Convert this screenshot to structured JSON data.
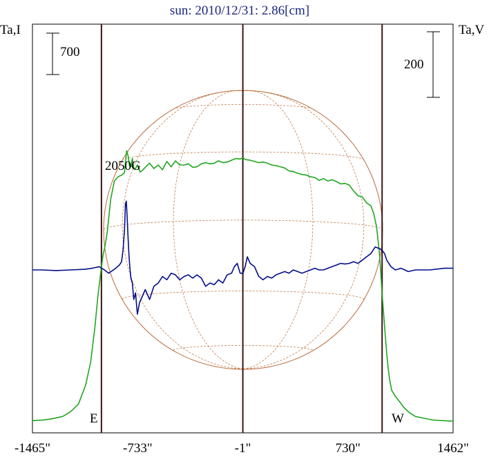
{
  "chart_data": {
    "type": "line",
    "title": "sun: 2010/12/31: 2.86[cm]",
    "left_axis_label": "Ta,I",
    "right_axis_label": "Ta,V",
    "xlim": [
      -1465,
      1462
    ],
    "x_ticks": [
      -1465,
      -733,
      -1,
      730,
      1462
    ],
    "x_tick_labels": [
      "-1465\"",
      "-733\"",
      "-1\"",
      "730\"",
      "1462\""
    ],
    "vertical_markers": [
      {
        "label": "E",
        "x": -985
      },
      {
        "label": "",
        "x": -1
      },
      {
        "label": "W",
        "x": 968
      }
    ],
    "scale_bars": [
      {
        "label": "700",
        "axis": "I",
        "value": 700
      },
      {
        "label": "200",
        "axis": "V",
        "value": 200
      }
    ],
    "annotations": [
      {
        "text": "2050G",
        "x": -806
      }
    ],
    "series": [
      {
        "axis": "I",
        "color": "#1fa61f",
        "x": [
          -1465,
          -1390,
          -1330,
          -1255,
          -1200,
          -1145,
          -1095,
          -1060,
          -1030,
          -1010,
          -995,
          -985,
          -975,
          -960,
          -945,
          -920,
          -895,
          -870,
          -845,
          -825,
          -810,
          -800,
          -790,
          -780,
          -770,
          -760,
          -750,
          -735,
          -715,
          -700,
          -680,
          -650,
          -620,
          -590,
          -560,
          -530,
          -500,
          -470,
          -440,
          -410,
          -380,
          -350,
          -320,
          -290,
          -260,
          -230,
          -200,
          -170,
          -140,
          -110,
          -80,
          -50,
          -20,
          0,
          20,
          50,
          80,
          110,
          140,
          170,
          200,
          230,
          260,
          290,
          320,
          350,
          380,
          410,
          440,
          470,
          500,
          530,
          560,
          590,
          620,
          650,
          680,
          710,
          740,
          770,
          800,
          830,
          860,
          890,
          910,
          930,
          950,
          960,
          970,
          980,
          990,
          1000,
          1010,
          1020,
          1035,
          1060,
          1090,
          1120,
          1160,
          1200,
          1260,
          1320,
          1390,
          1462
        ],
        "y": [
          20,
          30,
          50,
          90,
          170,
          300,
          620,
          1010,
          1610,
          2120,
          2420,
          2620,
          2800,
          2980,
          3200,
          3770,
          4070,
          4140,
          4170,
          4210,
          4580,
          4500,
          4330,
          4310,
          4450,
          4290,
          4270,
          4340,
          4220,
          4250,
          4300,
          4370,
          4280,
          4340,
          4260,
          4400,
          4310,
          4410,
          4340,
          4340,
          4360,
          4300,
          4310,
          4360,
          4380,
          4360,
          4370,
          4410,
          4380,
          4390,
          4420,
          4450,
          4440,
          4460,
          4430,
          4420,
          4400,
          4380,
          4390,
          4370,
          4340,
          4330,
          4310,
          4290,
          4240,
          4230,
          4200,
          4180,
          4170,
          4140,
          4130,
          4080,
          4110,
          4070,
          4090,
          4060,
          4020,
          4030,
          4000,
          3900,
          3820,
          3800,
          3700,
          3650,
          3520,
          3290,
          2830,
          2470,
          2110,
          1790,
          1460,
          1160,
          910,
          720,
          530,
          430,
          340,
          240,
          150,
          90,
          60,
          30,
          20,
          10
        ]
      },
      {
        "axis": "V",
        "color": "#000d8a",
        "x": [
          -1465,
          -1400,
          -1300,
          -1200,
          -1100,
          -1050,
          -1000,
          -985,
          -970,
          -950,
          -935,
          -915,
          -895,
          -878,
          -860,
          -845,
          -835,
          -825,
          -818,
          -812,
          -806,
          -800,
          -794,
          -788,
          -780,
          -770,
          -760,
          -748,
          -735,
          -720,
          -700,
          -680,
          -650,
          -620,
          -590,
          -560,
          -530,
          -500,
          -470,
          -440,
          -410,
          -380,
          -350,
          -320,
          -290,
          -260,
          -230,
          -200,
          -170,
          -140,
          -110,
          -80,
          -60,
          -40,
          -20,
          0,
          15,
          30,
          50,
          80,
          110,
          140,
          170,
          200,
          230,
          260,
          290,
          320,
          350,
          380,
          410,
          440,
          470,
          500,
          530,
          560,
          590,
          620,
          650,
          680,
          710,
          740,
          770,
          800,
          830,
          860,
          890,
          920,
          950,
          968,
          985,
          1000,
          1030,
          1060,
          1100,
          1150,
          1200,
          1300,
          1400,
          1462
        ],
        "y": [
          0,
          0,
          -2,
          0,
          2,
          5,
          10,
          5,
          2,
          -5,
          -10,
          -4,
          2,
          8,
          15,
          25,
          60,
          120,
          200,
          210,
          160,
          100,
          50,
          10,
          -25,
          -40,
          -90,
          -70,
          -135,
          -100,
          -80,
          -60,
          -90,
          -50,
          -40,
          -20,
          -30,
          -10,
          -15,
          -30,
          -20,
          -15,
          -25,
          -15,
          -25,
          -50,
          -40,
          -45,
          -30,
          -40,
          -15,
          -10,
          10,
          20,
          -10,
          -10,
          10,
          40,
          20,
          10,
          -20,
          -30,
          -20,
          -25,
          -15,
          -10,
          -5,
          -10,
          0,
          -5,
          -10,
          -5,
          0,
          5,
          0,
          0,
          5,
          10,
          15,
          20,
          18,
          20,
          25,
          20,
          30,
          40,
          50,
          70,
          65,
          60,
          50,
          30,
          10,
          0,
          5,
          -5,
          0,
          0,
          5,
          5
        ]
      }
    ]
  }
}
